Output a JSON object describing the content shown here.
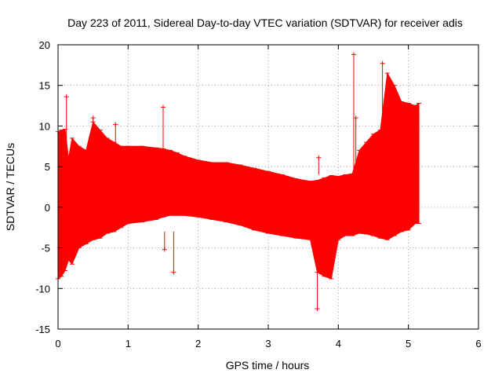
{
  "chart_data": {
    "type": "line",
    "title": "Day 223 of 2011, Sidereal Day-to-day VTEC variation (SDTVAR) for receiver adis",
    "xlabel": "GPS time / hours",
    "ylabel": "SDTVAR / TECUs",
    "xlim": [
      0,
      6
    ],
    "ylim": [
      -15,
      20
    ],
    "xticks": [
      "0",
      "1",
      "2",
      "3",
      "4",
      "5",
      "6"
    ],
    "yticks": [
      "20",
      "15",
      "10",
      "5",
      "0",
      "-5",
      "-10",
      "-15"
    ],
    "grid": true,
    "series_color": "#ff0000",
    "series": [
      {
        "style": "error-bars",
        "x": [
          0.0,
          0.05,
          0.1,
          0.15,
          0.2,
          0.3,
          0.4,
          0.5,
          0.6,
          0.7,
          0.8,
          0.9,
          1.0,
          1.2,
          1.4,
          1.5,
          1.6,
          1.7,
          1.8,
          2.0,
          2.2,
          2.4,
          2.6,
          2.8,
          3.0,
          3.2,
          3.4,
          3.6,
          3.7,
          3.8,
          3.9,
          4.0,
          4.1,
          4.2,
          4.3,
          4.4,
          4.5,
          4.6,
          4.7,
          4.8,
          4.9,
          5.0,
          5.1,
          5.15
        ],
        "ymax": [
          9.3,
          9.5,
          9.6,
          6.0,
          8.5,
          7.5,
          7.0,
          10.5,
          9.5,
          8.5,
          8.0,
          7.5,
          7.5,
          7.5,
          7.3,
          7.2,
          7.0,
          6.7,
          6.3,
          5.8,
          5.5,
          5.5,
          5.2,
          4.8,
          4.4,
          4.0,
          3.5,
          3.2,
          3.3,
          3.6,
          3.9,
          3.8,
          4.0,
          4.1,
          7.0,
          8.0,
          9.0,
          9.5,
          16.5,
          15.0,
          13.0,
          12.8,
          12.5,
          12.8
        ],
        "ymin": [
          -8.8,
          -8.5,
          -7.8,
          -6.5,
          -7.0,
          -5.0,
          -4.5,
          -4.0,
          -3.8,
          -3.2,
          -3.0,
          -2.5,
          -2.0,
          -1.8,
          -1.5,
          -1.2,
          -1.0,
          -1.0,
          -1.0,
          -1.2,
          -1.5,
          -1.8,
          -2.2,
          -2.8,
          -3.2,
          -3.5,
          -3.8,
          -4.0,
          -8.0,
          -8.5,
          -8.8,
          -4.0,
          -3.5,
          -3.5,
          -3.2,
          -3.3,
          -3.5,
          -3.8,
          -4.0,
          -3.5,
          -3.0,
          -2.8,
          -2.0,
          -2.0
        ]
      }
    ],
    "outliers": [
      {
        "x": 0.12,
        "y": 13.6
      },
      {
        "x": 0.5,
        "y": 11.0
      },
      {
        "x": 0.82,
        "y": 10.2
      },
      {
        "x": 1.5,
        "y": 12.3
      },
      {
        "x": 1.52,
        "y": -5.2
      },
      {
        "x": 1.65,
        "y": -8.0
      },
      {
        "x": 3.7,
        "y": -12.5
      },
      {
        "x": 3.72,
        "y": 6.1
      },
      {
        "x": 4.22,
        "y": 18.8
      },
      {
        "x": 4.25,
        "y": 11.0
      },
      {
        "x": 4.63,
        "y": 17.7
      }
    ]
  }
}
